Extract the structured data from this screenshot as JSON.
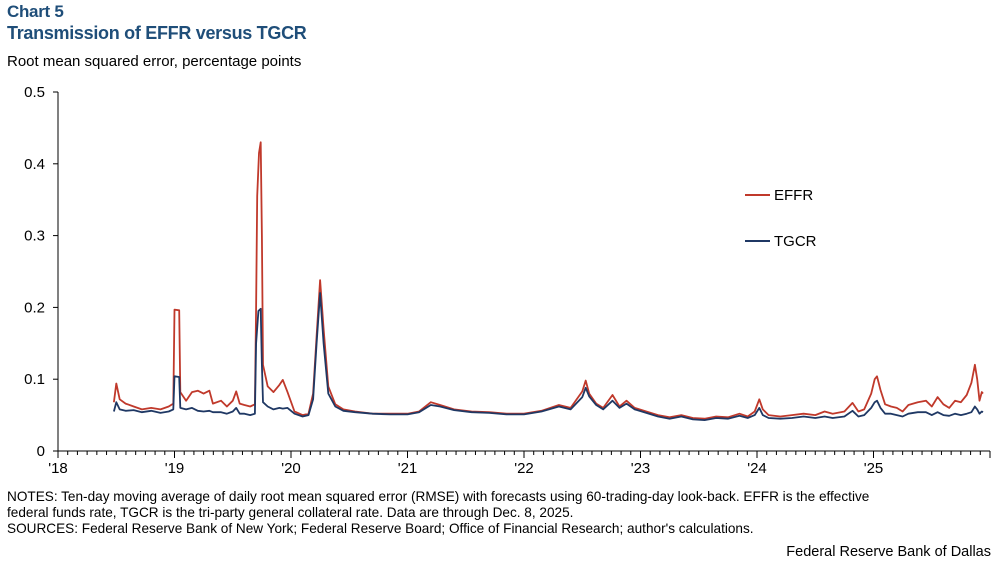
{
  "header": {
    "chart_label": "Chart 5",
    "title": "Transmission of EFFR versus TGCR",
    "subtitle": "Root mean squared error, percentage points"
  },
  "footer": {
    "notes_line1": "NOTES: Ten-day moving average of daily root mean squared error (RMSE) with forecasts using 60-trading-day look-back. EFFR is the effective",
    "notes_line2": "federal funds rate, TGCR is the tri-party general collateral rate. Data are through Dec. 8, 2025.",
    "sources": "SOURCES: Federal Reserve Bank of New York; Federal Reserve Board; Office of Financial Research; author's calculations.",
    "credit": "Federal Reserve Bank of Dallas"
  },
  "chart_data": {
    "type": "line",
    "title": "Transmission of EFFR versus TGCR",
    "ylabel": "Root mean squared error, percentage points",
    "xlabel": "",
    "xlim": [
      2018.0,
      2026.0
    ],
    "ylim": [
      0,
      0.5
    ],
    "y_ticks": [
      0,
      0.1,
      0.2,
      0.3,
      0.4,
      0.5
    ],
    "y_tick_labels": [
      "0",
      "0.1",
      "0.2",
      "0.3",
      "0.4",
      "0.5"
    ],
    "x_ticks": [
      2018,
      2019,
      2020,
      2021,
      2022,
      2023,
      2024,
      2025
    ],
    "x_tick_labels": [
      "'18",
      "'19",
      "'20",
      "'21",
      "'22",
      "'23",
      "'24",
      "'25"
    ],
    "grid": false,
    "legend_position": "right",
    "series": [
      {
        "name": "EFFR",
        "color": "#c0392b",
        "points": [
          [
            2018.48,
            0.068
          ],
          [
            2018.5,
            0.094
          ],
          [
            2018.53,
            0.072
          ],
          [
            2018.58,
            0.066
          ],
          [
            2018.65,
            0.062
          ],
          [
            2018.72,
            0.058
          ],
          [
            2018.8,
            0.06
          ],
          [
            2018.88,
            0.058
          ],
          [
            2018.95,
            0.062
          ],
          [
            2018.99,
            0.066
          ],
          [
            2019.0,
            0.197
          ],
          [
            2019.04,
            0.196
          ],
          [
            2019.05,
            0.082
          ],
          [
            2019.1,
            0.07
          ],
          [
            2019.15,
            0.082
          ],
          [
            2019.2,
            0.084
          ],
          [
            2019.25,
            0.08
          ],
          [
            2019.3,
            0.084
          ],
          [
            2019.33,
            0.066
          ],
          [
            2019.4,
            0.07
          ],
          [
            2019.45,
            0.062
          ],
          [
            2019.5,
            0.07
          ],
          [
            2019.53,
            0.083
          ],
          [
            2019.56,
            0.066
          ],
          [
            2019.6,
            0.064
          ],
          [
            2019.65,
            0.062
          ],
          [
            2019.69,
            0.065
          ],
          [
            2019.7,
            0.2
          ],
          [
            2019.71,
            0.355
          ],
          [
            2019.725,
            0.415
          ],
          [
            2019.74,
            0.43
          ],
          [
            2019.75,
            0.3
          ],
          [
            2019.76,
            0.12
          ],
          [
            2019.8,
            0.09
          ],
          [
            2019.85,
            0.082
          ],
          [
            2019.9,
            0.092
          ],
          [
            2019.93,
            0.099
          ],
          [
            2019.97,
            0.082
          ],
          [
            2020.03,
            0.055
          ],
          [
            2020.1,
            0.05
          ],
          [
            2020.15,
            0.052
          ],
          [
            2020.19,
            0.08
          ],
          [
            2020.22,
            0.16
          ],
          [
            2020.25,
            0.238
          ],
          [
            2020.28,
            0.17
          ],
          [
            2020.32,
            0.09
          ],
          [
            2020.38,
            0.065
          ],
          [
            2020.45,
            0.058
          ],
          [
            2020.55,
            0.055
          ],
          [
            2020.7,
            0.052
          ],
          [
            2020.85,
            0.052
          ],
          [
            2021.0,
            0.052
          ],
          [
            2021.1,
            0.055
          ],
          [
            2021.2,
            0.068
          ],
          [
            2021.28,
            0.064
          ],
          [
            2021.4,
            0.058
          ],
          [
            2021.55,
            0.055
          ],
          [
            2021.7,
            0.054
          ],
          [
            2021.85,
            0.052
          ],
          [
            2022.0,
            0.052
          ],
          [
            2022.15,
            0.056
          ],
          [
            2022.3,
            0.064
          ],
          [
            2022.4,
            0.06
          ],
          [
            2022.5,
            0.083
          ],
          [
            2022.53,
            0.098
          ],
          [
            2022.56,
            0.08
          ],
          [
            2022.62,
            0.066
          ],
          [
            2022.68,
            0.06
          ],
          [
            2022.76,
            0.078
          ],
          [
            2022.82,
            0.062
          ],
          [
            2022.88,
            0.07
          ],
          [
            2022.95,
            0.06
          ],
          [
            2023.05,
            0.055
          ],
          [
            2023.15,
            0.05
          ],
          [
            2023.25,
            0.047
          ],
          [
            2023.35,
            0.05
          ],
          [
            2023.45,
            0.046
          ],
          [
            2023.55,
            0.045
          ],
          [
            2023.65,
            0.048
          ],
          [
            2023.75,
            0.047
          ],
          [
            2023.85,
            0.052
          ],
          [
            2023.92,
            0.048
          ],
          [
            2023.98,
            0.055
          ],
          [
            2024.02,
            0.072
          ],
          [
            2024.05,
            0.058
          ],
          [
            2024.1,
            0.05
          ],
          [
            2024.2,
            0.048
          ],
          [
            2024.3,
            0.05
          ],
          [
            2024.4,
            0.052
          ],
          [
            2024.5,
            0.05
          ],
          [
            2024.58,
            0.055
          ],
          [
            2024.65,
            0.052
          ],
          [
            2024.75,
            0.055
          ],
          [
            2024.82,
            0.067
          ],
          [
            2024.87,
            0.055
          ],
          [
            2024.92,
            0.058
          ],
          [
            2024.98,
            0.08
          ],
          [
            2025.01,
            0.1
          ],
          [
            2025.03,
            0.104
          ],
          [
            2025.06,
            0.085
          ],
          [
            2025.1,
            0.065
          ],
          [
            2025.15,
            0.062
          ],
          [
            2025.2,
            0.06
          ],
          [
            2025.25,
            0.055
          ],
          [
            2025.3,
            0.064
          ],
          [
            2025.38,
            0.068
          ],
          [
            2025.45,
            0.07
          ],
          [
            2025.5,
            0.062
          ],
          [
            2025.55,
            0.075
          ],
          [
            2025.6,
            0.065
          ],
          [
            2025.65,
            0.06
          ],
          [
            2025.7,
            0.07
          ],
          [
            2025.75,
            0.068
          ],
          [
            2025.8,
            0.078
          ],
          [
            2025.84,
            0.095
          ],
          [
            2025.87,
            0.12
          ],
          [
            2025.89,
            0.1
          ],
          [
            2025.91,
            0.07
          ],
          [
            2025.93,
            0.082
          ],
          [
            2025.94,
            0.08
          ]
        ]
      },
      {
        "name": "TGCR",
        "color": "#1f3864",
        "points": [
          [
            2018.48,
            0.055
          ],
          [
            2018.5,
            0.068
          ],
          [
            2018.53,
            0.058
          ],
          [
            2018.58,
            0.056
          ],
          [
            2018.65,
            0.057
          ],
          [
            2018.72,
            0.054
          ],
          [
            2018.8,
            0.056
          ],
          [
            2018.88,
            0.053
          ],
          [
            2018.95,
            0.055
          ],
          [
            2018.99,
            0.058
          ],
          [
            2019.0,
            0.104
          ],
          [
            2019.04,
            0.103
          ],
          [
            2019.05,
            0.06
          ],
          [
            2019.1,
            0.058
          ],
          [
            2019.15,
            0.06
          ],
          [
            2019.2,
            0.056
          ],
          [
            2019.25,
            0.055
          ],
          [
            2019.3,
            0.056
          ],
          [
            2019.33,
            0.054
          ],
          [
            2019.4,
            0.054
          ],
          [
            2019.45,
            0.052
          ],
          [
            2019.5,
            0.055
          ],
          [
            2019.53,
            0.06
          ],
          [
            2019.56,
            0.052
          ],
          [
            2019.6,
            0.052
          ],
          [
            2019.65,
            0.05
          ],
          [
            2019.69,
            0.052
          ],
          [
            2019.7,
            0.15
          ],
          [
            2019.72,
            0.195
          ],
          [
            2019.74,
            0.198
          ],
          [
            2019.75,
            0.12
          ],
          [
            2019.76,
            0.068
          ],
          [
            2019.8,
            0.062
          ],
          [
            2019.85,
            0.058
          ],
          [
            2019.9,
            0.06
          ],
          [
            2019.93,
            0.059
          ],
          [
            2019.97,
            0.06
          ],
          [
            2020.03,
            0.052
          ],
          [
            2020.1,
            0.048
          ],
          [
            2020.15,
            0.05
          ],
          [
            2020.19,
            0.072
          ],
          [
            2020.22,
            0.15
          ],
          [
            2020.25,
            0.22
          ],
          [
            2020.28,
            0.15
          ],
          [
            2020.32,
            0.08
          ],
          [
            2020.38,
            0.062
          ],
          [
            2020.45,
            0.056
          ],
          [
            2020.55,
            0.054
          ],
          [
            2020.7,
            0.052
          ],
          [
            2020.85,
            0.051
          ],
          [
            2021.0,
            0.051
          ],
          [
            2021.1,
            0.054
          ],
          [
            2021.2,
            0.064
          ],
          [
            2021.28,
            0.062
          ],
          [
            2021.4,
            0.057
          ],
          [
            2021.55,
            0.054
          ],
          [
            2021.7,
            0.053
          ],
          [
            2021.85,
            0.051
          ],
          [
            2022.0,
            0.051
          ],
          [
            2022.15,
            0.055
          ],
          [
            2022.3,
            0.062
          ],
          [
            2022.4,
            0.058
          ],
          [
            2022.5,
            0.075
          ],
          [
            2022.53,
            0.088
          ],
          [
            2022.56,
            0.076
          ],
          [
            2022.62,
            0.064
          ],
          [
            2022.68,
            0.058
          ],
          [
            2022.76,
            0.07
          ],
          [
            2022.82,
            0.06
          ],
          [
            2022.88,
            0.066
          ],
          [
            2022.95,
            0.058
          ],
          [
            2023.05,
            0.053
          ],
          [
            2023.15,
            0.048
          ],
          [
            2023.25,
            0.045
          ],
          [
            2023.35,
            0.048
          ],
          [
            2023.45,
            0.044
          ],
          [
            2023.55,
            0.043
          ],
          [
            2023.65,
            0.046
          ],
          [
            2023.75,
            0.045
          ],
          [
            2023.85,
            0.049
          ],
          [
            2023.92,
            0.046
          ],
          [
            2023.98,
            0.05
          ],
          [
            2024.02,
            0.06
          ],
          [
            2024.05,
            0.05
          ],
          [
            2024.1,
            0.046
          ],
          [
            2024.2,
            0.045
          ],
          [
            2024.3,
            0.046
          ],
          [
            2024.4,
            0.048
          ],
          [
            2024.5,
            0.046
          ],
          [
            2024.58,
            0.048
          ],
          [
            2024.65,
            0.046
          ],
          [
            2024.75,
            0.048
          ],
          [
            2024.82,
            0.056
          ],
          [
            2024.87,
            0.048
          ],
          [
            2024.92,
            0.05
          ],
          [
            2024.98,
            0.06
          ],
          [
            2025.01,
            0.068
          ],
          [
            2025.03,
            0.07
          ],
          [
            2025.06,
            0.06
          ],
          [
            2025.1,
            0.052
          ],
          [
            2025.15,
            0.052
          ],
          [
            2025.2,
            0.05
          ],
          [
            2025.25,
            0.048
          ],
          [
            2025.3,
            0.052
          ],
          [
            2025.38,
            0.054
          ],
          [
            2025.45,
            0.054
          ],
          [
            2025.5,
            0.05
          ],
          [
            2025.55,
            0.054
          ],
          [
            2025.6,
            0.05
          ],
          [
            2025.65,
            0.049
          ],
          [
            2025.7,
            0.052
          ],
          [
            2025.75,
            0.05
          ],
          [
            2025.8,
            0.052
          ],
          [
            2025.84,
            0.054
          ],
          [
            2025.87,
            0.062
          ],
          [
            2025.89,
            0.058
          ],
          [
            2025.91,
            0.052
          ],
          [
            2025.93,
            0.055
          ],
          [
            2025.94,
            0.054
          ]
        ]
      }
    ]
  }
}
